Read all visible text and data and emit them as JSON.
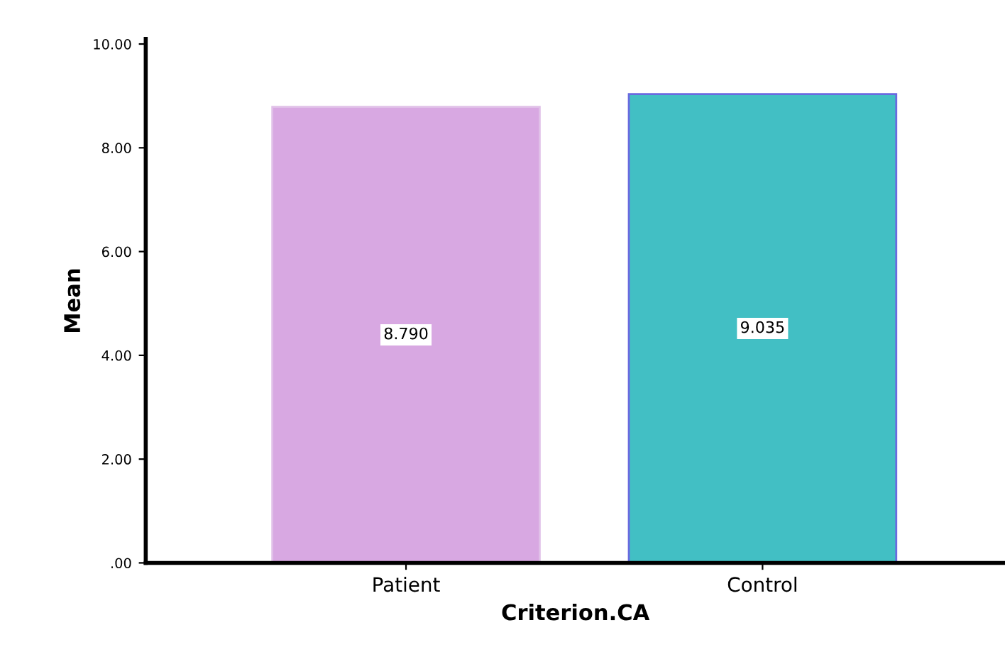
{
  "chart_data": {
    "type": "bar",
    "xlabel": "Criterion.CA",
    "ylabel": "Mean",
    "categories": [
      "Patient",
      "Control"
    ],
    "values": [
      8.79,
      9.035
    ],
    "value_labels": [
      "8.790",
      "9.035"
    ],
    "colors": [
      "#d8a8e2",
      "#42bfc4"
    ],
    "ylim": [
      0,
      10.1
    ],
    "yticks": [
      {
        "value": 0,
        "label": ".00"
      },
      {
        "value": 2,
        "label": "2.00"
      },
      {
        "value": 4,
        "label": "4.00"
      },
      {
        "value": 6,
        "label": "6.00"
      },
      {
        "value": 8,
        "label": "8.00"
      },
      {
        "value": 10,
        "label": "10.00"
      }
    ],
    "grid": false
  }
}
